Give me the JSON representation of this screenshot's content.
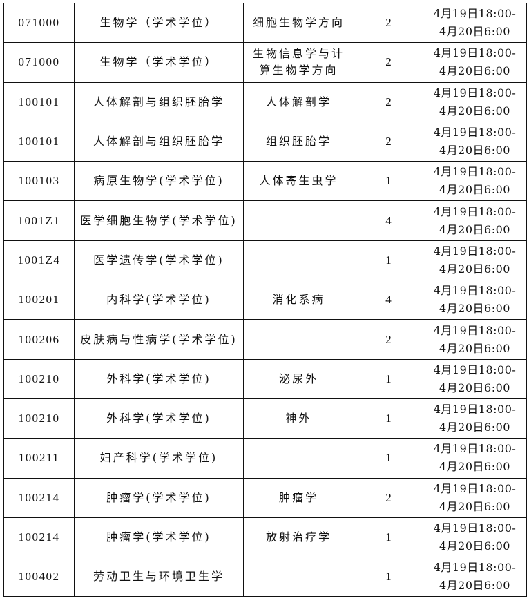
{
  "rows": [
    {
      "code": "071000",
      "major": "生物学（学术学位）",
      "direction": "细胞生物学方向",
      "count": "2",
      "time1": "4月19日18:00-",
      "time2": "4月20日6:00"
    },
    {
      "code": "071000",
      "major": "生物学（学术学位）",
      "direction": "生物信息学与计算生物学方向",
      "count": "2",
      "time1": "4月19日18:00-",
      "time2": "4月20日6:00"
    },
    {
      "code": "100101",
      "major": "人体解剖与组织胚胎学",
      "direction": "人体解剖学",
      "count": "2",
      "time1": "4月19日18:00-",
      "time2": "4月20日6:00"
    },
    {
      "code": "100101",
      "major": "人体解剖与组织胚胎学",
      "direction": "组织胚胎学",
      "count": "2",
      "time1": "4月19日18:00-",
      "time2": "4月20日6:00"
    },
    {
      "code": "100103",
      "major": "病原生物学(学术学位)",
      "direction": "人体寄生虫学",
      "count": "1",
      "time1": "4月19日18:00-",
      "time2": "4月20日6:00"
    },
    {
      "code": "1001Z1",
      "major": "医学细胞生物学(学术学位)",
      "direction": "",
      "count": "4",
      "time1": "4月19日18:00-",
      "time2": "4月20日6:00"
    },
    {
      "code": "1001Z4",
      "major": "医学遗传学(学术学位)",
      "direction": "",
      "count": "1",
      "time1": "4月19日18:00-",
      "time2": "4月20日6:00"
    },
    {
      "code": "100201",
      "major": "内科学(学术学位)",
      "direction": "消化系病",
      "count": "4",
      "time1": "4月19日18:00-",
      "time2": "4月20日6:00"
    },
    {
      "code": "100206",
      "major": "皮肤病与性病学(学术学位)",
      "direction": "",
      "count": "2",
      "time1": "4月19日18:00-",
      "time2": "4月20日6:00"
    },
    {
      "code": "100210",
      "major": "外科学(学术学位)",
      "direction": "泌尿外",
      "count": "1",
      "time1": "4月19日18:00-",
      "time2": "4月20日6:00"
    },
    {
      "code": "100210",
      "major": "外科学(学术学位)",
      "direction": "神外",
      "count": "1",
      "time1": "4月19日18:00-",
      "time2": "4月20日6:00"
    },
    {
      "code": "100211",
      "major": "妇产科学(学术学位)",
      "direction": "",
      "count": "1",
      "time1": "4月19日18:00-",
      "time2": "4月20日6:00"
    },
    {
      "code": "100214",
      "major": "肿瘤学(学术学位)",
      "direction": "肿瘤学",
      "count": "2",
      "time1": "4月19日18:00-",
      "time2": "4月20日6:00"
    },
    {
      "code": "100214",
      "major": "肿瘤学(学术学位)",
      "direction": "放射治疗学",
      "count": "1",
      "time1": "4月19日18:00-",
      "time2": "4月20日6:00"
    },
    {
      "code": "100402",
      "major": "劳动卫生与环境卫生学",
      "direction": "",
      "count": "1",
      "time1": "4月19日18:00-",
      "time2": "4月20日6:00"
    }
  ]
}
